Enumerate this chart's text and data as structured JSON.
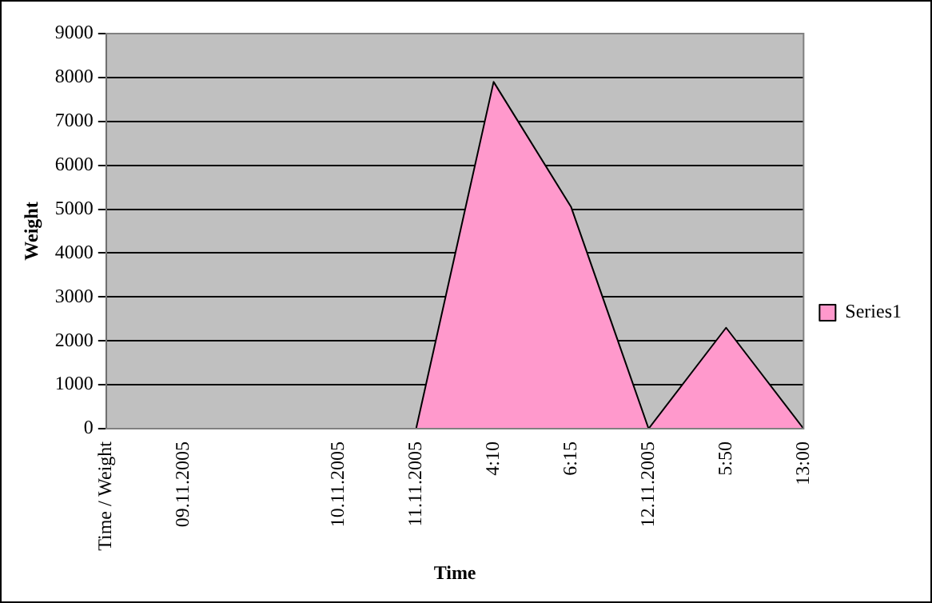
{
  "chart_data": {
    "type": "area",
    "xlabel": "Time",
    "ylabel": "Weight",
    "categories": [
      "Time / Weight",
      "09.11.2005",
      null,
      "10.11.2005",
      "11.11.2005",
      "4:10",
      "6:15",
      "12.11.2005",
      "5:50",
      "13:00"
    ],
    "series": [
      {
        "name": "Series1",
        "color": "#ff99cc",
        "values": [
          0,
          0,
          0,
          0,
          0,
          7900,
          5050,
          0,
          2300,
          0
        ]
      }
    ],
    "ylim": [
      0,
      9000
    ],
    "yticks": [
      0,
      1000,
      2000,
      3000,
      4000,
      5000,
      6000,
      7000,
      8000,
      9000
    ],
    "grid": "y",
    "legend": "right"
  }
}
